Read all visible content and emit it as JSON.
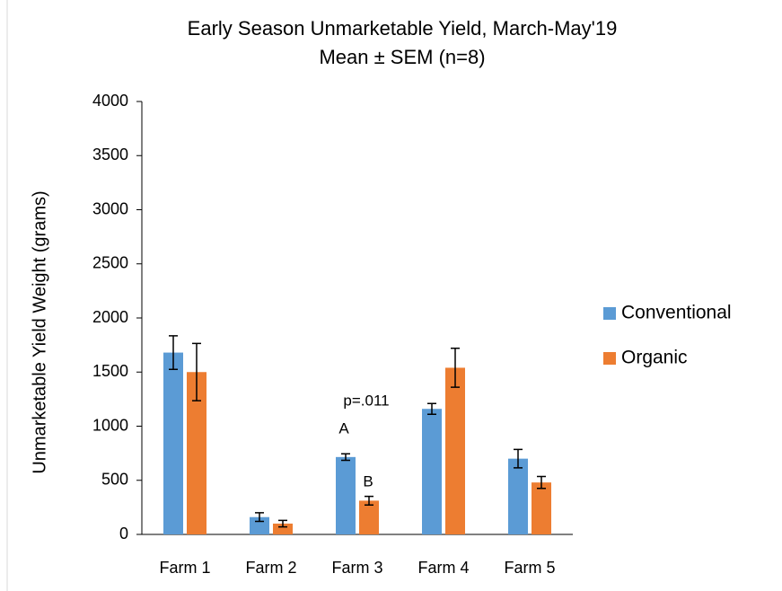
{
  "chart_data": {
    "type": "bar",
    "title": "Early Season Unmarketable Yield, March-May'19",
    "subtitle": "Mean ± SEM (n=8)",
    "y_label": "Unmarketable Yield Weight (grams)",
    "categories": [
      "Farm 1",
      "Farm 2",
      "Farm 3",
      "Farm 4",
      "Farm 5"
    ],
    "series": [
      {
        "name": "Conventional",
        "color": "#5b9bd5",
        "values": [
          1680,
          160,
          715,
          1160,
          700
        ],
        "errors": [
          155,
          40,
          30,
          50,
          85
        ]
      },
      {
        "name": "Organic",
        "color": "#ed7d31",
        "values": [
          1500,
          100,
          312,
          1540,
          480
        ],
        "errors": [
          265,
          30,
          40,
          180,
          55
        ]
      }
    ],
    "annotations": [
      "p=.011",
      "A",
      "B"
    ],
    "ylim": [
      0,
      4000
    ],
    "yticks": [
      0,
      500,
      1000,
      1500,
      2000,
      2500,
      3000,
      3500,
      4000
    ],
    "legend": "right"
  }
}
